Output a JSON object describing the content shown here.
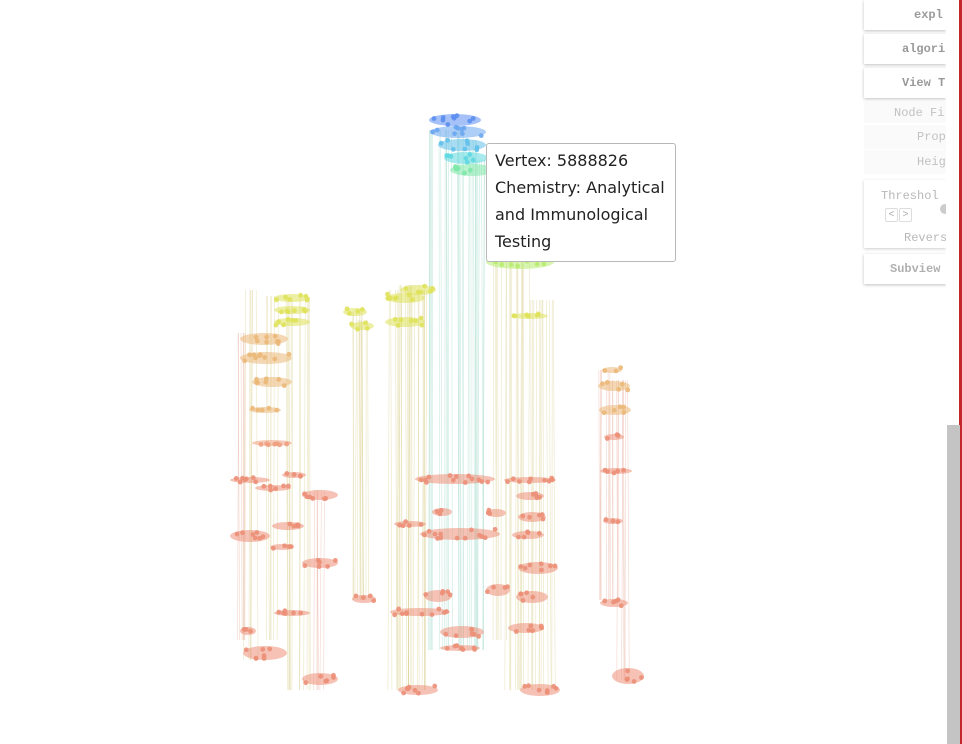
{
  "tooltip": {
    "vertex_line": "Vertex: 5888826",
    "category_line_1": "Chemistry: Analytical",
    "category_line_2": "and Immunological",
    "category_line_3": "Testing"
  },
  "panel": {
    "explore_label": "expl",
    "algorithm_label": "algori",
    "view_label": "View T",
    "node_filter_label": "Node Fi",
    "property_label": "Prop",
    "height_label": "Heig",
    "threshold_label": "Threshol",
    "prev_label": "<",
    "next_label": ">",
    "reverse_label": "Revers",
    "subview_label": "Subview"
  },
  "colors": {
    "top_blue": "#5b8ef0",
    "cyan": "#5fd8e0",
    "green": "#7de8a8",
    "yellow": "#dfe25a",
    "orange": "#ebb878",
    "salmon": "#ec8f78",
    "accent_red": "#c0262a"
  }
}
